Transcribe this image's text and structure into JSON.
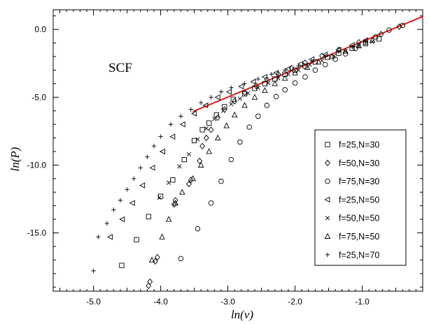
{
  "chart_data": {
    "type": "scatter",
    "title": "",
    "xlabel": "ln(v)",
    "ylabel": "ln(P)",
    "annotation": "SCF",
    "xlim": [
      -5.6,
      -0.1
    ],
    "ylim": [
      -19.3,
      1.45
    ],
    "xticks": [
      {
        "value": -5.0,
        "label": "-5.0"
      },
      {
        "value": -4.0,
        "label": "-4.0"
      },
      {
        "value": -3.0,
        "label": "-3.0"
      },
      {
        "value": -2.0,
        "label": "-2.0"
      },
      {
        "value": -1.0,
        "label": "-1.0"
      }
    ],
    "yticks": [
      {
        "value": 0.0,
        "label": "0.0"
      },
      {
        "value": -5.0,
        "label": "-5.0"
      },
      {
        "value": -10.0,
        "label": "-10.0"
      },
      {
        "value": -15.0,
        "label": "-15.0"
      }
    ],
    "grid": false,
    "legend_position": "right",
    "series": [
      {
        "name": "f=25,N=30",
        "marker": "square",
        "points": [
          [
            -4.58,
            -17.4
          ],
          [
            -4.36,
            -15.5
          ],
          [
            -4.18,
            -13.8
          ],
          [
            -4.0,
            -12.3
          ],
          [
            -3.82,
            -11.1
          ],
          [
            -3.65,
            -9.6
          ],
          [
            -3.5,
            -8.2
          ],
          [
            -3.38,
            -7.4
          ],
          [
            -3.28,
            -6.9
          ],
          [
            -3.17,
            -6.3
          ],
          [
            -3.05,
            -5.7
          ],
          [
            -2.92,
            -5.15
          ],
          [
            -2.75,
            -4.75
          ],
          [
            -2.6,
            -4.35
          ],
          [
            -2.45,
            -4.0
          ],
          [
            -2.3,
            -3.65
          ],
          [
            -2.15,
            -3.3
          ],
          [
            -2.0,
            -3.0
          ],
          [
            -1.85,
            -2.7
          ],
          [
            -1.7,
            -2.4
          ],
          [
            -1.52,
            -2.05
          ],
          [
            -1.35,
            -1.75
          ],
          [
            -1.15,
            -1.4
          ],
          [
            -0.95,
            -1.05
          ],
          [
            -0.75,
            -0.7
          ]
        ]
      },
      {
        "name": "f=50,N=30",
        "marker": "diamond",
        "points": [
          [
            -4.18,
            -18.9
          ],
          [
            -4.16,
            -18.6
          ],
          [
            -4.05,
            -16.8
          ],
          [
            -4.08,
            -17.1
          ],
          [
            -3.8,
            -12.9
          ],
          [
            -3.78,
            -12.6
          ],
          [
            -3.58,
            -11.4
          ],
          [
            -3.55,
            -11.1
          ],
          [
            -3.42,
            -9.7
          ],
          [
            -3.38,
            -8.6
          ],
          [
            -3.32,
            -8.0
          ],
          [
            -3.25,
            -7.4
          ],
          [
            -3.15,
            -6.5
          ],
          [
            -3.05,
            -5.9
          ],
          [
            -2.9,
            -5.3
          ],
          [
            -2.75,
            -4.65
          ],
          [
            -2.58,
            -4.15
          ],
          [
            -2.42,
            -3.7
          ],
          [
            -2.25,
            -3.3
          ],
          [
            -2.05,
            -2.85
          ],
          [
            -1.85,
            -2.45
          ],
          [
            -1.6,
            -1.95
          ],
          [
            -1.35,
            -1.5
          ],
          [
            -1.05,
            -0.95
          ],
          [
            -0.72,
            -0.35
          ],
          [
            -0.45,
            0.2
          ]
        ]
      },
      {
        "name": "f=75,N=30",
        "marker": "circle",
        "points": [
          [
            -3.7,
            -16.9
          ],
          [
            -3.45,
            -14.7
          ],
          [
            -3.25,
            -12.8
          ],
          [
            -3.1,
            -11.2
          ],
          [
            -2.95,
            -9.6
          ],
          [
            -2.82,
            -8.3
          ],
          [
            -2.68,
            -7.2
          ],
          [
            -2.55,
            -6.4
          ],
          [
            -2.42,
            -5.6
          ],
          [
            -2.28,
            -4.95
          ],
          [
            -2.15,
            -4.45
          ],
          [
            -2.0,
            -3.95
          ],
          [
            -1.85,
            -3.5
          ],
          [
            -1.7,
            -3.0
          ],
          [
            -1.55,
            -2.6
          ],
          [
            -1.4,
            -2.2
          ],
          [
            -1.25,
            -1.8
          ],
          [
            -1.1,
            -1.4
          ],
          [
            -0.95,
            -0.95
          ],
          [
            -0.8,
            -0.55
          ],
          [
            -0.6,
            -0.05
          ],
          [
            -0.4,
            0.3
          ]
        ]
      },
      {
        "name": "f=25,N=50",
        "marker": "tri-left",
        "points": [
          [
            -4.75,
            -15.3
          ],
          [
            -4.57,
            -14.0
          ],
          [
            -4.42,
            -12.8
          ],
          [
            -4.27,
            -11.5
          ],
          [
            -4.12,
            -10.2
          ],
          [
            -3.97,
            -9.0
          ],
          [
            -3.82,
            -7.9
          ],
          [
            -3.67,
            -7.0
          ],
          [
            -3.5,
            -6.2
          ],
          [
            -3.33,
            -5.6
          ],
          [
            -3.15,
            -5.0
          ],
          [
            -2.98,
            -4.6
          ],
          [
            -2.8,
            -4.2
          ],
          [
            -2.62,
            -3.85
          ],
          [
            -2.45,
            -3.5
          ],
          [
            -2.28,
            -3.2
          ],
          [
            -2.1,
            -2.9
          ],
          [
            -1.92,
            -2.55
          ],
          [
            -1.75,
            -2.2
          ],
          [
            -1.55,
            -1.85
          ],
          [
            -1.35,
            -1.5
          ],
          [
            -1.15,
            -1.15
          ],
          [
            -0.95,
            -0.8
          ]
        ]
      },
      {
        "name": "f=50,N=50",
        "marker": "x",
        "points": [
          [
            -4.02,
            -12.4
          ],
          [
            -3.88,
            -11.3
          ],
          [
            -3.72,
            -10.1
          ],
          [
            -3.58,
            -9.2
          ],
          [
            -3.45,
            -8.1
          ],
          [
            -3.32,
            -7.3
          ],
          [
            -3.2,
            -6.6
          ],
          [
            -3.07,
            -6.0
          ],
          [
            -2.95,
            -5.5
          ],
          [
            -2.82,
            -5.1
          ],
          [
            -2.7,
            -4.7
          ],
          [
            -2.55,
            -4.3
          ],
          [
            -2.4,
            -3.95
          ],
          [
            -2.25,
            -3.6
          ],
          [
            -2.1,
            -3.3
          ],
          [
            -1.95,
            -3.0
          ],
          [
            -1.78,
            -2.6
          ],
          [
            -1.6,
            -2.3
          ],
          [
            -1.42,
            -1.95
          ],
          [
            -1.25,
            -1.6
          ],
          [
            -1.05,
            -1.25
          ],
          [
            -0.85,
            -0.9
          ]
        ]
      },
      {
        "name": "f=75,N=50",
        "marker": "tri-up",
        "points": [
          [
            -4.13,
            -17.0
          ],
          [
            -3.98,
            -15.3
          ],
          [
            -3.88,
            -14.0
          ],
          [
            -3.78,
            -12.8
          ],
          [
            -3.68,
            -12.0
          ],
          [
            -3.52,
            -11.0
          ],
          [
            -3.4,
            -10.0
          ],
          [
            -3.28,
            -9.0
          ],
          [
            -3.15,
            -8.0
          ],
          [
            -3.02,
            -7.1
          ],
          [
            -2.9,
            -6.3
          ],
          [
            -2.75,
            -5.6
          ],
          [
            -2.6,
            -5.0
          ],
          [
            -2.45,
            -4.5
          ],
          [
            -2.3,
            -4.0
          ],
          [
            -2.15,
            -3.6
          ],
          [
            -2.0,
            -3.2
          ],
          [
            -1.82,
            -2.8
          ],
          [
            -1.65,
            -2.4
          ],
          [
            -1.45,
            -2.0
          ],
          [
            -1.25,
            -1.6
          ],
          [
            -1.05,
            -1.2
          ],
          [
            -0.85,
            -0.8
          ]
        ]
      },
      {
        "name": "f=25,N=70",
        "marker": "plus",
        "points": [
          [
            -5.0,
            -17.8
          ],
          [
            -4.93,
            -15.3
          ],
          [
            -4.8,
            -14.3
          ],
          [
            -4.7,
            -13.3
          ],
          [
            -4.6,
            -12.6
          ],
          [
            -4.5,
            -11.8
          ],
          [
            -4.4,
            -11.0
          ],
          [
            -4.3,
            -10.2
          ],
          [
            -4.2,
            -9.4
          ],
          [
            -4.1,
            -8.6
          ],
          [
            -4.0,
            -7.9
          ],
          [
            -3.85,
            -7.0
          ],
          [
            -3.7,
            -6.4
          ],
          [
            -3.55,
            -5.9
          ],
          [
            -3.4,
            -5.4
          ],
          [
            -3.25,
            -5.0
          ],
          [
            -3.1,
            -4.6
          ],
          [
            -2.95,
            -4.3
          ],
          [
            -2.75,
            -4.0
          ],
          [
            -2.55,
            -3.65
          ],
          [
            -2.35,
            -3.3
          ],
          [
            -2.15,
            -3.0
          ],
          [
            -1.95,
            -2.7
          ],
          [
            -1.75,
            -2.35
          ],
          [
            -1.55,
            -2.0
          ],
          [
            -1.35,
            -1.65
          ],
          [
            -1.15,
            -1.3
          ],
          [
            -0.95,
            -0.95
          ]
        ]
      }
    ],
    "fit_line": {
      "points": [
        [
          -3.52,
          -6.05
        ],
        [
          -0.1,
          0.95
        ]
      ],
      "color": "#e0201b"
    },
    "axis_color": "#000000",
    "marker_color": "#000000"
  }
}
